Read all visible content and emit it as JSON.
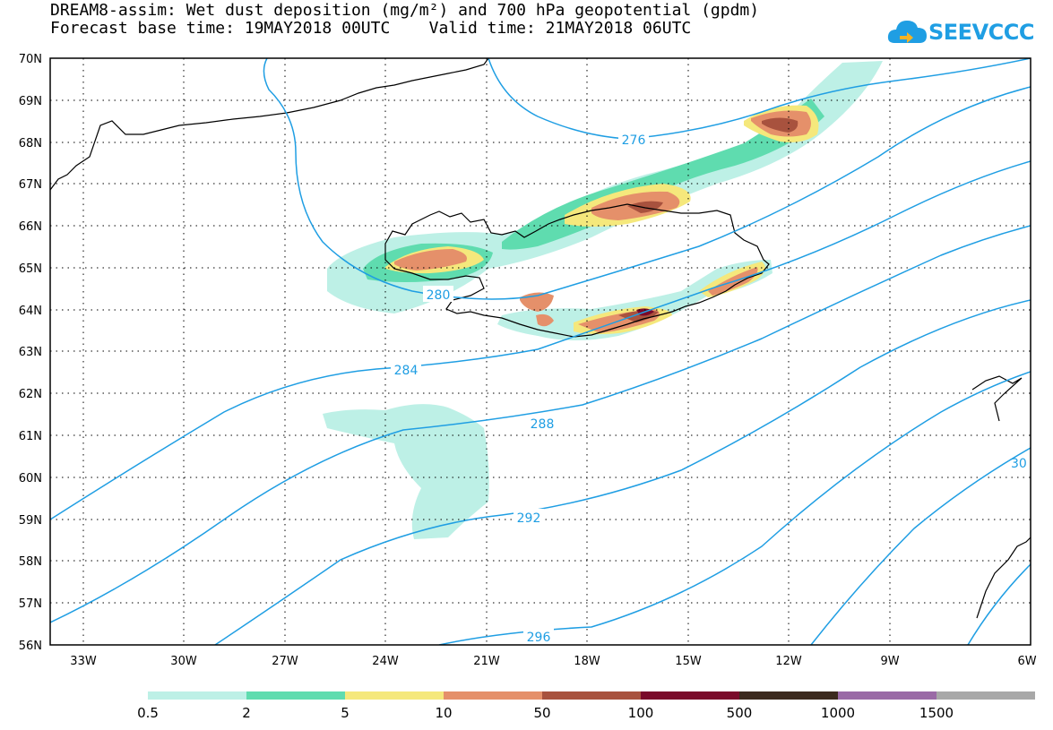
{
  "title": {
    "line1": "DREAM8-assim: Wet dust deposition (mg/m²) and 700 hPa geopotential (gpdm)",
    "line2": "Forecast base time: 19MAY2018 00UTC    Valid time: 21MAY2018 06UTC"
  },
  "logo": {
    "text": "SEEVCCC",
    "icon": "cloud-logo-icon",
    "color": "#1f9ee3"
  },
  "map": {
    "lat_labels": [
      "70N",
      "69N",
      "68N",
      "67N",
      "66N",
      "65N",
      "64N",
      "63N",
      "62N",
      "61N",
      "60N",
      "59N",
      "58N",
      "57N",
      "56N"
    ],
    "lon_labels": [
      "33W",
      "30W",
      "27W",
      "24W",
      "21W",
      "18W",
      "15W",
      "12W",
      "9W",
      "6W"
    ],
    "contour_labels": [
      "276",
      "280",
      "284",
      "288",
      "292",
      "296",
      "30"
    ],
    "contour_color": "#1f9ee3"
  },
  "legend": {
    "labels": [
      "0.5",
      "2",
      "5",
      "10",
      "50",
      "100",
      "500",
      "1000",
      "1500"
    ],
    "colors": [
      "#bdf0e6",
      "#5fdcaf",
      "#f5e87c",
      "#e5906a",
      "#a8523e",
      "#7a0a2a",
      "#3c2a1e",
      "#9a6aa6",
      "#a8a8a8"
    ]
  }
}
